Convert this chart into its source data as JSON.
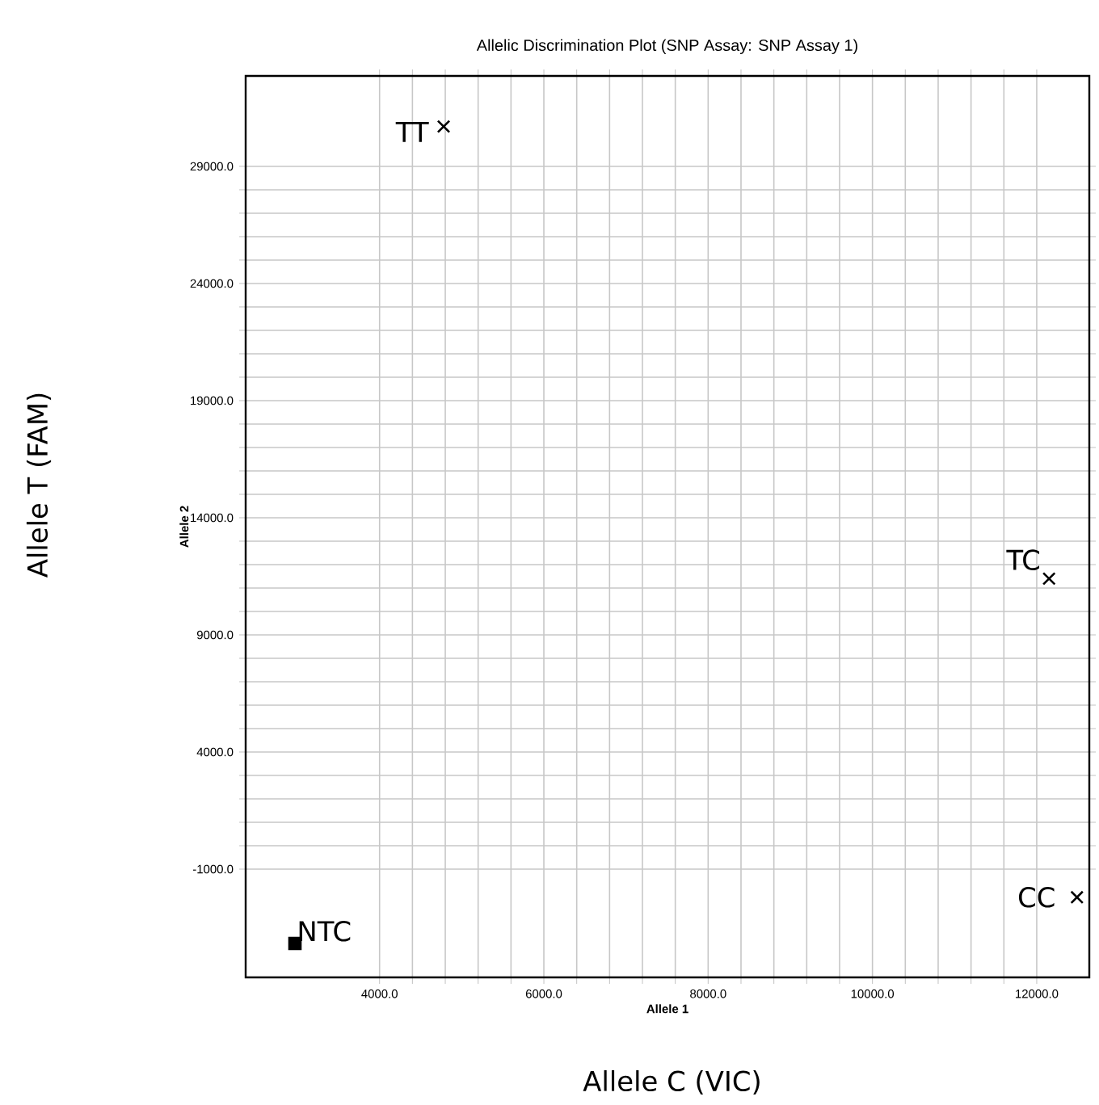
{
  "chart_data": {
    "type": "scatter",
    "title": "Allelic Discrimination Plot (SNP Assay: SNP Assay 1)",
    "xlabel": "Allele 1",
    "ylabel": "Allele 2",
    "xlim": [
      2370,
      12640
    ],
    "ylim": [
      -5620,
      32860
    ],
    "xticks": [
      {
        "value": 4000,
        "label": "4000.0"
      },
      {
        "value": 6000,
        "label": "6000.0"
      },
      {
        "value": 8000,
        "label": "8000.0"
      },
      {
        "value": 10000,
        "label": "10000.0"
      },
      {
        "value": 12000,
        "label": "12000.0"
      }
    ],
    "yticks": [
      {
        "value": -1000,
        "label": "-1000.0"
      },
      {
        "value": 4000,
        "label": "4000.0"
      },
      {
        "value": 9000,
        "label": "9000.0"
      },
      {
        "value": 14000,
        "label": "14000.0"
      },
      {
        "value": 19000,
        "label": "19000.0"
      },
      {
        "value": 24000,
        "label": "24000.0"
      },
      {
        "value": 29000,
        "label": "29000.0"
      }
    ],
    "grid": true,
    "series": [
      {
        "color": "#000000",
        "marker": "cross",
        "x": [
          4780,
          12150,
          12490
        ],
        "values": [
          30700,
          11400,
          -2200
        ]
      },
      {
        "color": "#000000",
        "marker": "square",
        "x": [
          2970
        ],
        "values": [
          -4170
        ]
      }
    ],
    "annotations": [
      {
        "text": "TT",
        "x": 4780,
        "y": 30700
      },
      {
        "text": "TC",
        "x": 12150,
        "y": 11400
      },
      {
        "text": "CC",
        "x": 12490,
        "y": -2200
      },
      {
        "text": "NTC",
        "x": 2970,
        "y": -4170
      },
      "Allele C (VIC)",
      "Allele T (FAM)"
    ]
  }
}
